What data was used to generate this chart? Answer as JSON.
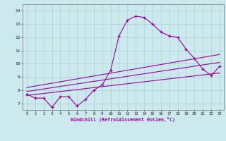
{
  "xlabel": "Windchill (Refroidissement éolien,°C)",
  "bg_color": "#cce9ee",
  "line_color": "#990099",
  "grid_color": "#aacfd8",
  "x_ticks": [
    0,
    1,
    2,
    3,
    4,
    5,
    6,
    7,
    8,
    9,
    10,
    11,
    12,
    13,
    14,
    15,
    16,
    17,
    18,
    19,
    20,
    21,
    22,
    23
  ],
  "ylim": [
    6.5,
    14.5
  ],
  "xlim": [
    -0.5,
    23.5
  ],
  "yticks": [
    7,
    8,
    9,
    10,
    11,
    12,
    13,
    14
  ],
  "series1_x": [
    0,
    1,
    2,
    3,
    4,
    5,
    6,
    7,
    8,
    9,
    10,
    11,
    12,
    13,
    14,
    15,
    16,
    17,
    18,
    19,
    20,
    21,
    22,
    23
  ],
  "series1_y": [
    7.7,
    7.4,
    7.4,
    6.7,
    7.5,
    7.5,
    6.8,
    7.3,
    8.0,
    8.4,
    9.5,
    12.1,
    13.3,
    13.6,
    13.5,
    13.0,
    12.4,
    12.1,
    12.0,
    11.1,
    10.4,
    9.6,
    9.1,
    9.8
  ],
  "series2_x": [
    0,
    23
  ],
  "series2_y": [
    7.6,
    9.3
  ],
  "series3_x": [
    0,
    23
  ],
  "series3_y": [
    7.9,
    10.1
  ],
  "series4_x": [
    0,
    23
  ],
  "series4_y": [
    8.2,
    10.7
  ]
}
